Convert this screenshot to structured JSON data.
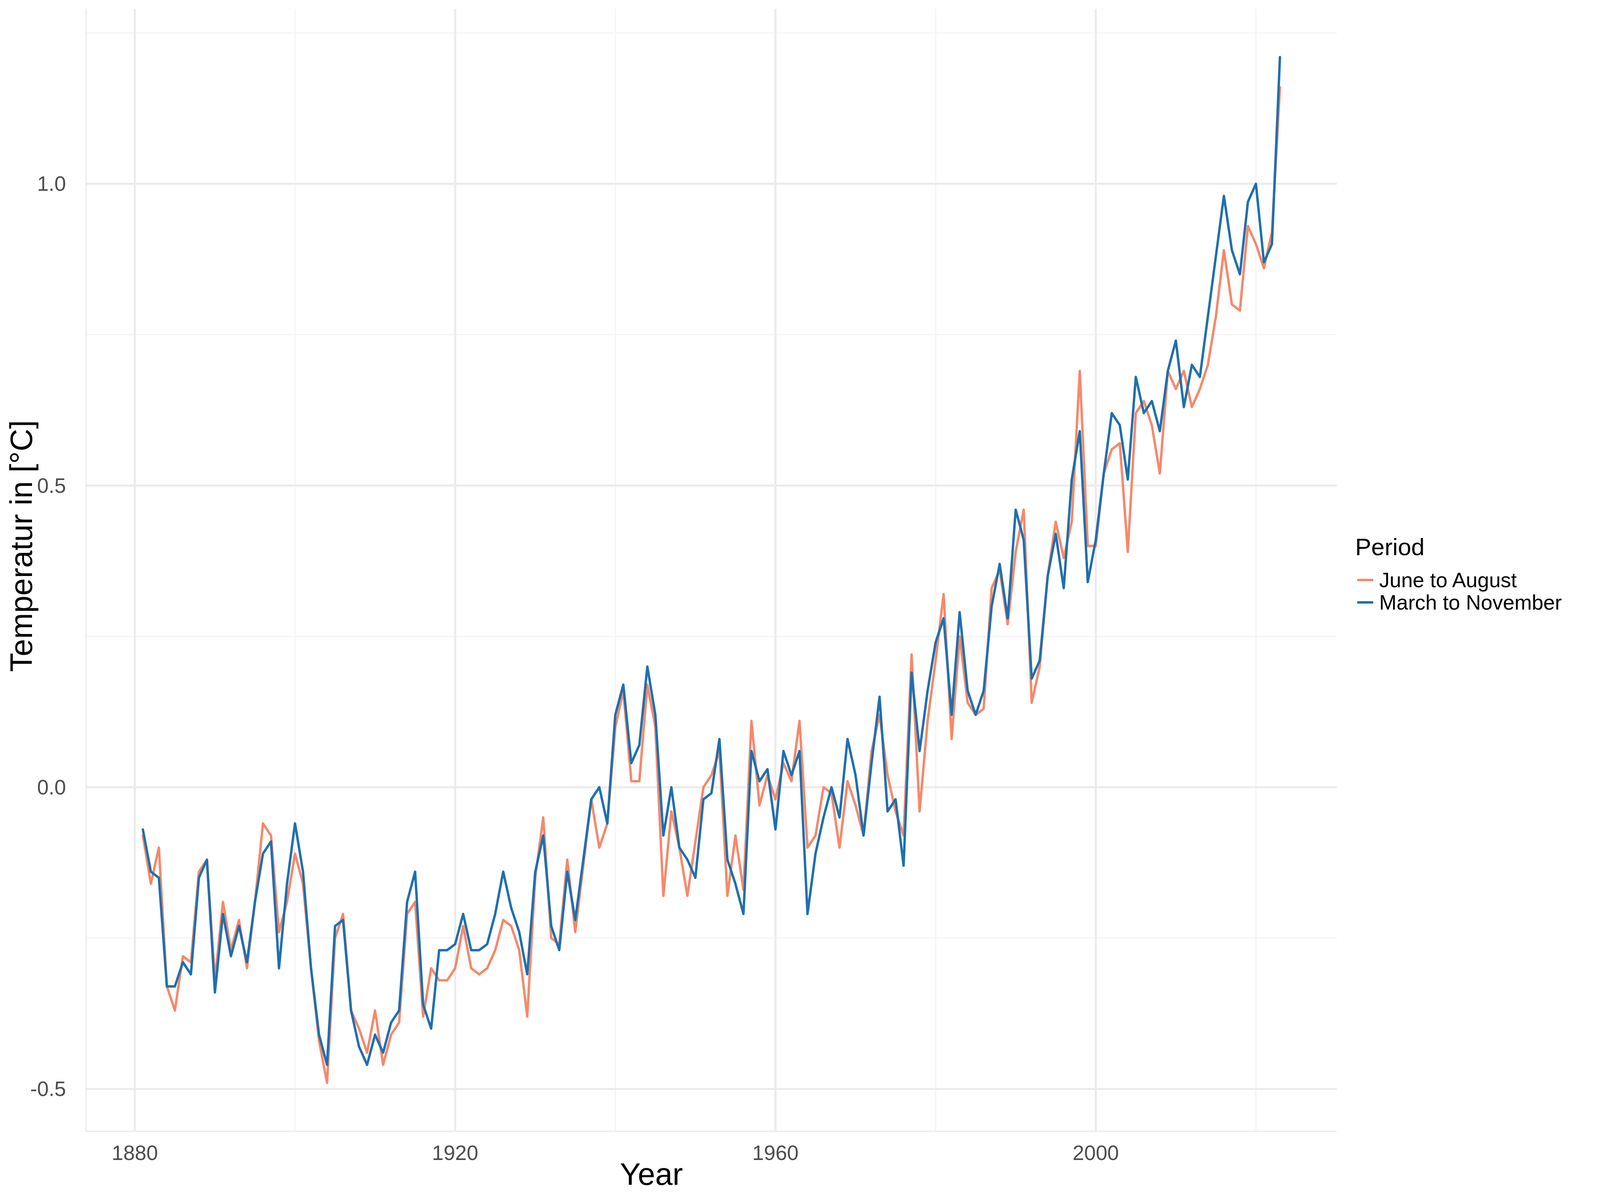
{
  "chart_data": {
    "type": "line",
    "x_label": "Year",
    "y_label": "Temperatur in [°C]",
    "legend_title": "Period",
    "legend": "right",
    "grid": true,
    "x": [
      1881,
      1882,
      1883,
      1884,
      1885,
      1886,
      1887,
      1888,
      1889,
      1890,
      1891,
      1892,
      1893,
      1894,
      1895,
      1896,
      1897,
      1898,
      1899,
      1900,
      1901,
      1902,
      1903,
      1904,
      1905,
      1906,
      1907,
      1908,
      1909,
      1910,
      1911,
      1912,
      1913,
      1914,
      1915,
      1916,
      1917,
      1918,
      1919,
      1920,
      1921,
      1922,
      1923,
      1924,
      1925,
      1926,
      1927,
      1928,
      1929,
      1930,
      1931,
      1932,
      1933,
      1934,
      1935,
      1936,
      1937,
      1938,
      1939,
      1940,
      1941,
      1942,
      1943,
      1944,
      1945,
      1946,
      1947,
      1948,
      1949,
      1950,
      1951,
      1952,
      1953,
      1954,
      1955,
      1956,
      1957,
      1958,
      1959,
      1960,
      1961,
      1962,
      1963,
      1964,
      1965,
      1966,
      1967,
      1968,
      1969,
      1970,
      1971,
      1972,
      1973,
      1974,
      1975,
      1976,
      1977,
      1978,
      1979,
      1980,
      1981,
      1982,
      1983,
      1984,
      1985,
      1986,
      1987,
      1988,
      1989,
      1990,
      1991,
      1992,
      1993,
      1994,
      1995,
      1996,
      1997,
      1998,
      1999,
      2000,
      2001,
      2002,
      2003,
      2004,
      2005,
      2006,
      2007,
      2008,
      2009,
      2010,
      2011,
      2012,
      2013,
      2014,
      2015,
      2016,
      2017,
      2018,
      2019,
      2020,
      2021,
      2022,
      2023
    ],
    "xlim": [
      1873.9,
      2030.1
    ],
    "xticks": [
      1880,
      1920,
      1960,
      2000
    ],
    "ylim": [
      -0.57,
      1.29
    ],
    "yticks": [
      {
        "value": -0.5,
        "label": "-0.5"
      },
      {
        "value": 0,
        "label": "0.0"
      },
      {
        "value": 0.5,
        "label": "0.5"
      },
      {
        "value": 1,
        "label": "1.0"
      }
    ],
    "series": [
      {
        "name": "June to August",
        "color": "#f4896b",
        "line_style": "solid",
        "values": [
          -0.08,
          -0.16,
          -0.1,
          -0.33,
          -0.37,
          -0.28,
          -0.29,
          -0.14,
          -0.12,
          -0.32,
          -0.19,
          -0.27,
          -0.22,
          -0.3,
          -0.19,
          -0.06,
          -0.08,
          -0.24,
          -0.19,
          -0.11,
          -0.16,
          -0.3,
          -0.42,
          -0.49,
          -0.25,
          -0.21,
          -0.37,
          -0.4,
          -0.44,
          -0.37,
          -0.46,
          -0.41,
          -0.39,
          -0.21,
          -0.19,
          -0.38,
          -0.3,
          -0.32,
          -0.32,
          -0.3,
          -0.23,
          -0.3,
          -0.31,
          -0.3,
          -0.27,
          -0.22,
          -0.23,
          -0.27,
          -0.38,
          -0.15,
          -0.05,
          -0.25,
          -0.26,
          -0.12,
          -0.24,
          -0.13,
          -0.02,
          -0.1,
          -0.06,
          0.1,
          0.16,
          0.01,
          0.01,
          0.17,
          0.1,
          -0.18,
          -0.04,
          -0.1,
          -0.18,
          -0.09,
          0.0,
          0.02,
          0.06,
          -0.18,
          -0.08,
          -0.17,
          0.11,
          -0.03,
          0.02,
          -0.02,
          0.04,
          0.01,
          0.11,
          -0.1,
          -0.08,
          0.0,
          -0.01,
          -0.1,
          0.01,
          -0.03,
          -0.08,
          0.06,
          0.12,
          0.02,
          -0.04,
          -0.08,
          0.22,
          -0.04,
          0.11,
          0.21,
          0.32,
          0.08,
          0.25,
          0.14,
          0.12,
          0.13,
          0.33,
          0.36,
          0.27,
          0.39,
          0.46,
          0.14,
          0.2,
          0.35,
          0.44,
          0.38,
          0.44,
          0.69,
          0.4,
          0.4,
          0.52,
          0.56,
          0.57,
          0.39,
          0.62,
          0.64,
          0.6,
          0.52,
          0.69,
          0.66,
          0.69,
          0.63,
          0.66,
          0.7,
          0.78,
          0.89,
          0.8,
          0.79,
          0.93,
          0.9,
          0.86,
          0.92,
          1.16
        ]
      },
      {
        "name": "March to November",
        "color": "#1f6fae",
        "line_style": "solid",
        "values": [
          -0.07,
          -0.14,
          -0.15,
          -0.33,
          -0.33,
          -0.29,
          -0.31,
          -0.15,
          -0.12,
          -0.34,
          -0.21,
          -0.28,
          -0.23,
          -0.29,
          -0.19,
          -0.11,
          -0.09,
          -0.3,
          -0.16,
          -0.06,
          -0.14,
          -0.3,
          -0.41,
          -0.46,
          -0.23,
          -0.22,
          -0.37,
          -0.43,
          -0.46,
          -0.41,
          -0.44,
          -0.39,
          -0.37,
          -0.19,
          -0.14,
          -0.36,
          -0.4,
          -0.27,
          -0.27,
          -0.26,
          -0.21,
          -0.27,
          -0.27,
          -0.26,
          -0.21,
          -0.14,
          -0.2,
          -0.24,
          -0.31,
          -0.14,
          -0.08,
          -0.23,
          -0.27,
          -0.14,
          -0.22,
          -0.12,
          -0.02,
          0.0,
          -0.06,
          0.12,
          0.17,
          0.04,
          0.07,
          0.2,
          0.12,
          -0.08,
          0.0,
          -0.1,
          -0.12,
          -0.15,
          -0.02,
          -0.01,
          0.08,
          -0.12,
          -0.16,
          -0.21,
          0.06,
          0.01,
          0.03,
          -0.07,
          0.06,
          0.02,
          0.06,
          -0.21,
          -0.11,
          -0.05,
          0.0,
          -0.05,
          0.08,
          0.02,
          -0.08,
          0.04,
          0.15,
          -0.04,
          -0.02,
          -0.13,
          0.19,
          0.06,
          0.16,
          0.24,
          0.28,
          0.12,
          0.29,
          0.16,
          0.12,
          0.16,
          0.3,
          0.37,
          0.28,
          0.46,
          0.41,
          0.18,
          0.21,
          0.35,
          0.42,
          0.33,
          0.51,
          0.59,
          0.34,
          0.41,
          0.52,
          0.62,
          0.6,
          0.51,
          0.68,
          0.62,
          0.64,
          0.59,
          0.69,
          0.74,
          0.63,
          0.7,
          0.68,
          0.78,
          0.88,
          0.98,
          0.89,
          0.85,
          0.97,
          1.0,
          0.87,
          0.9,
          1.21
        ]
      }
    ]
  }
}
